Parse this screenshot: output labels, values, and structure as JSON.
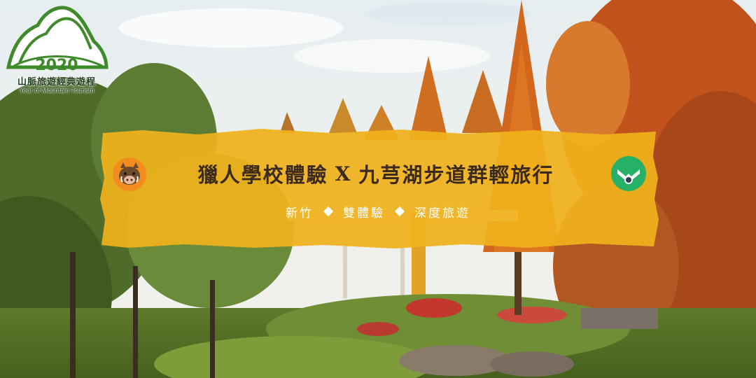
{
  "logo": {
    "year_mark": "2020",
    "title": "山脈旅遊經典遊程",
    "subtitle": "Year of Mountain Tourism"
  },
  "banner": {
    "headline_left": "獵人學校體驗",
    "separator": "X",
    "headline_right": "九芎湖步道群輕旅行",
    "tags": [
      "新竹",
      "雙體驗",
      "深度旅遊"
    ]
  },
  "icons": {
    "left": "boar-icon",
    "right": "spring-icon"
  },
  "colors": {
    "banner_yellow": "#f0b21c",
    "text_dark": "#3b2a1d",
    "logo_green": "#3f8a2a",
    "icon_green": "#27b068"
  }
}
